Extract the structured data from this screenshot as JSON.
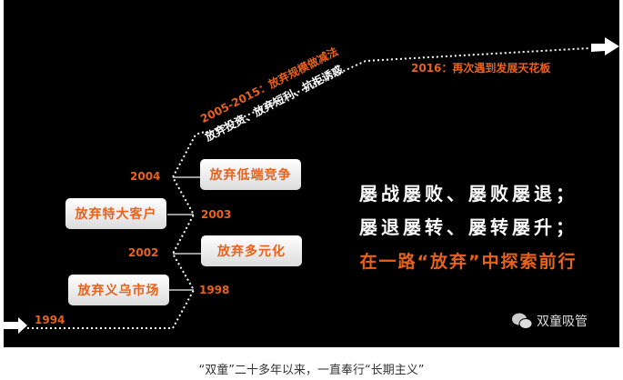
{
  "timeline": {
    "start_year": "1994",
    "milestones": [
      {
        "year": "1998",
        "label": "放弃义乌市场"
      },
      {
        "year": "2002",
        "label": "放弃多元化"
      },
      {
        "year": "2003",
        "label": "放弃特大客户"
      },
      {
        "year": "2004",
        "label": "放弃低端竞争"
      }
    ],
    "period_title": "2005-2015：放弃规模做减法",
    "period_subtitle": "放弃投资、放弃短利、抗拒诱惑",
    "end_label": "2016：再次遇到发展天花板"
  },
  "slogan": {
    "line1": "屡战屡败、屡败屡退；",
    "line2": "屡退屡转、屡转屡升；",
    "line3": "在一路“放弃”中探索前行"
  },
  "watermark": {
    "icon": "wechat-icon",
    "text": "双童吸管"
  },
  "caption": "“双童”二十多年以来，一直奉行“长期主义”",
  "colors": {
    "accent": "#e8621c",
    "background": "#000000"
  }
}
